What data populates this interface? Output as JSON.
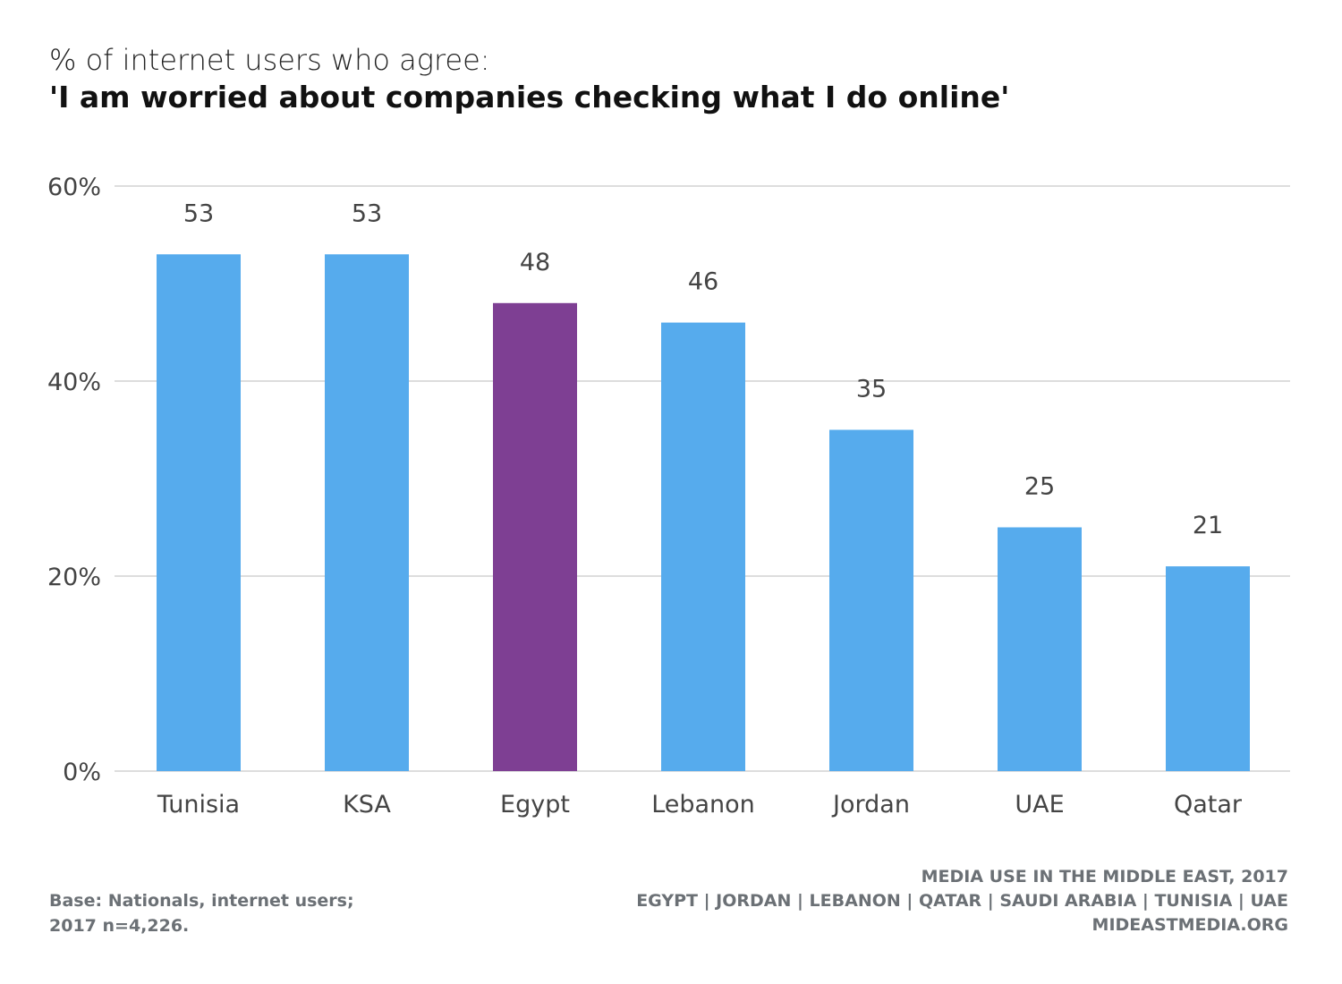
{
  "header": {
    "subtitle": "% of internet users who agree:",
    "title": "'I am worried about companies checking what I do online'"
  },
  "chart_data": {
    "type": "bar",
    "title": "'I am worried about companies checking what I do online'",
    "subtitle": "% of internet users who agree:",
    "categories": [
      "Tunisia",
      "KSA",
      "Egypt",
      "Lebanon",
      "Jordan",
      "UAE",
      "Qatar"
    ],
    "values": [
      53,
      53,
      48,
      46,
      35,
      25,
      21
    ],
    "data_labels": [
      "53",
      "53",
      "48",
      "46",
      "35",
      "25",
      "21"
    ],
    "highlight": "Egypt",
    "colors": {
      "default": "#56abed",
      "highlight": "#7e3f93",
      "grid": "#dddddd",
      "axis_text": "#444444"
    },
    "ylim": [
      0,
      60
    ],
    "yticks": [
      0,
      20,
      40,
      60
    ],
    "ytick_labels": [
      "0%",
      "20%",
      "40%",
      "60%"
    ],
    "grid": true,
    "legend": "none"
  },
  "footer": {
    "base_line1": "Base: Nationals, internet users;",
    "base_line2": "2017 n=4,226.",
    "source_line1": "MEDIA USE IN THE MIDDLE EAST, 2017",
    "source_line2": "EGYPT | JORDAN | LEBANON | QATAR | SAUDI ARABIA | TUNISIA | UAE",
    "source_line3": "MIDEASTMEDIA.ORG"
  }
}
